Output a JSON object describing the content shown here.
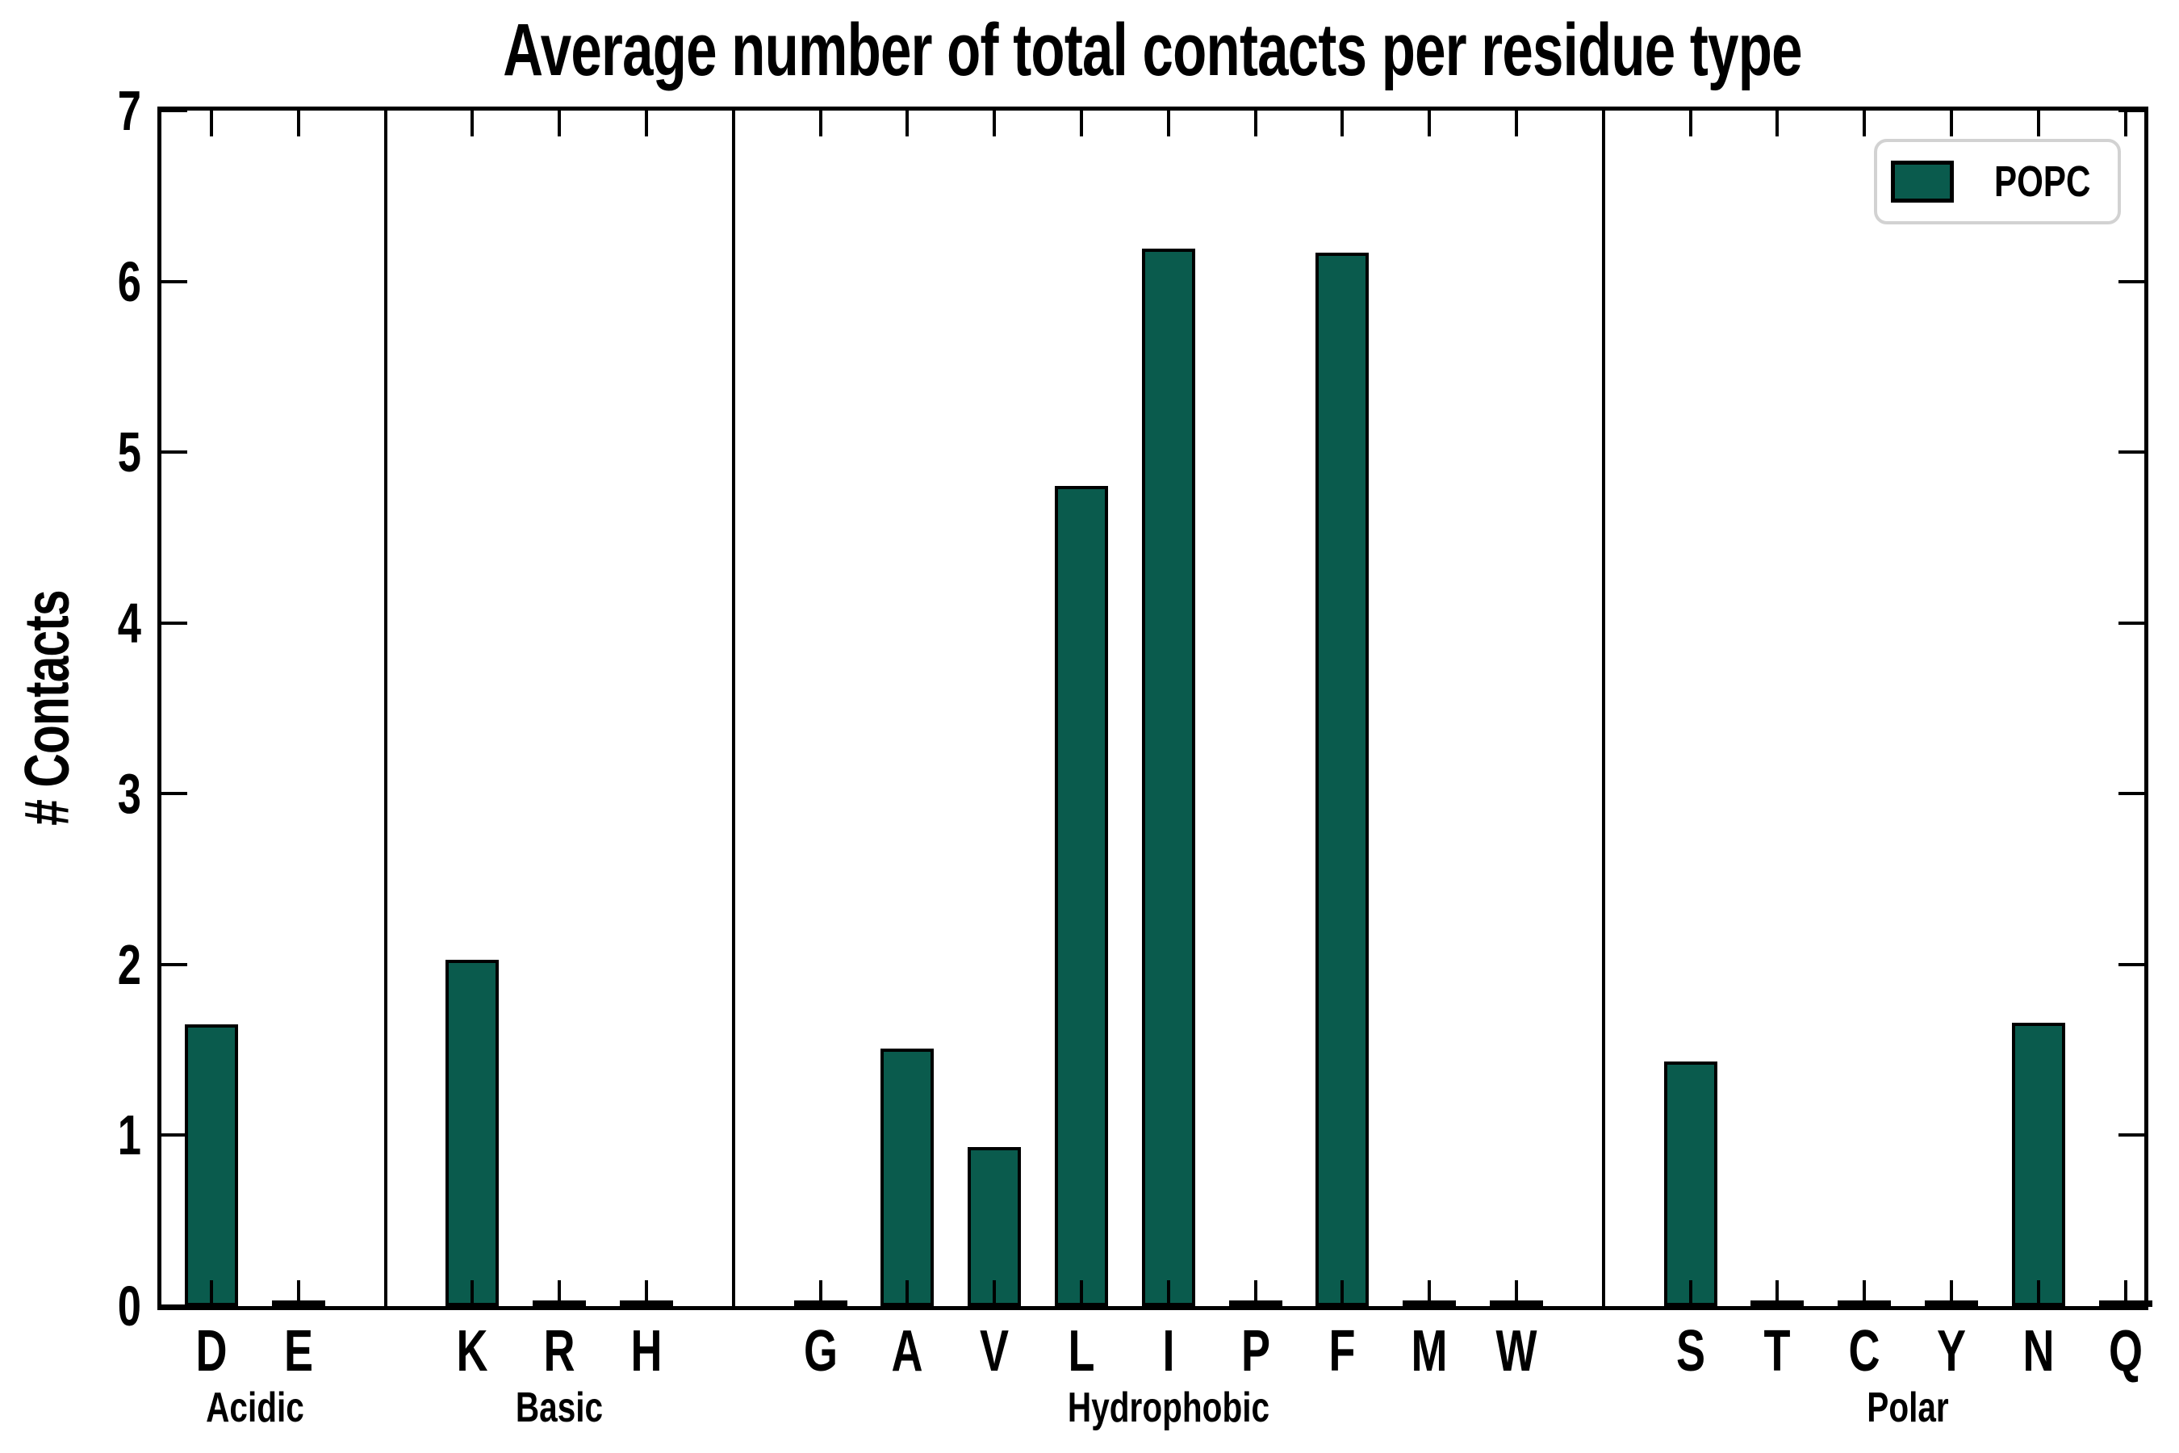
{
  "colors": {
    "bar_fill": "#0a5b4d",
    "bar_edge": "#000000",
    "axis": "#000000",
    "legend_border": "#d2d2d2",
    "background": "#ffffff",
    "text": "#000000"
  },
  "chart_data": {
    "type": "bar",
    "title": "Average number of total contacts per residue type",
    "xlabel": "",
    "ylabel": "# Contacts",
    "ylim": [
      0,
      7
    ],
    "yticks": [
      0,
      1,
      2,
      3,
      4,
      5,
      6,
      7
    ],
    "grid": false,
    "legend_position": "upper right",
    "legend": [
      {
        "name": "POPC",
        "color": "#0a5b4d"
      }
    ],
    "groups": [
      {
        "label": "Acidic",
        "categories": [
          "D",
          "E"
        ],
        "values": [
          1.65,
          0.02
        ]
      },
      {
        "label": "Basic",
        "categories": [
          "K",
          "R",
          "H"
        ],
        "values": [
          2.03,
          0.02,
          0.02
        ]
      },
      {
        "label": "Hydrophobic",
        "categories": [
          "G",
          "A",
          "V",
          "L",
          "I",
          "P",
          "F",
          "M",
          "W"
        ],
        "values": [
          0.02,
          1.51,
          0.93,
          4.8,
          6.19,
          0.02,
          6.17,
          0.02,
          0.02
        ]
      },
      {
        "label": "Polar",
        "categories": [
          "S",
          "T",
          "C",
          "Y",
          "N",
          "Q"
        ],
        "values": [
          1.43,
          0.02,
          0.02,
          0.02,
          1.66,
          0.02
        ]
      }
    ]
  }
}
